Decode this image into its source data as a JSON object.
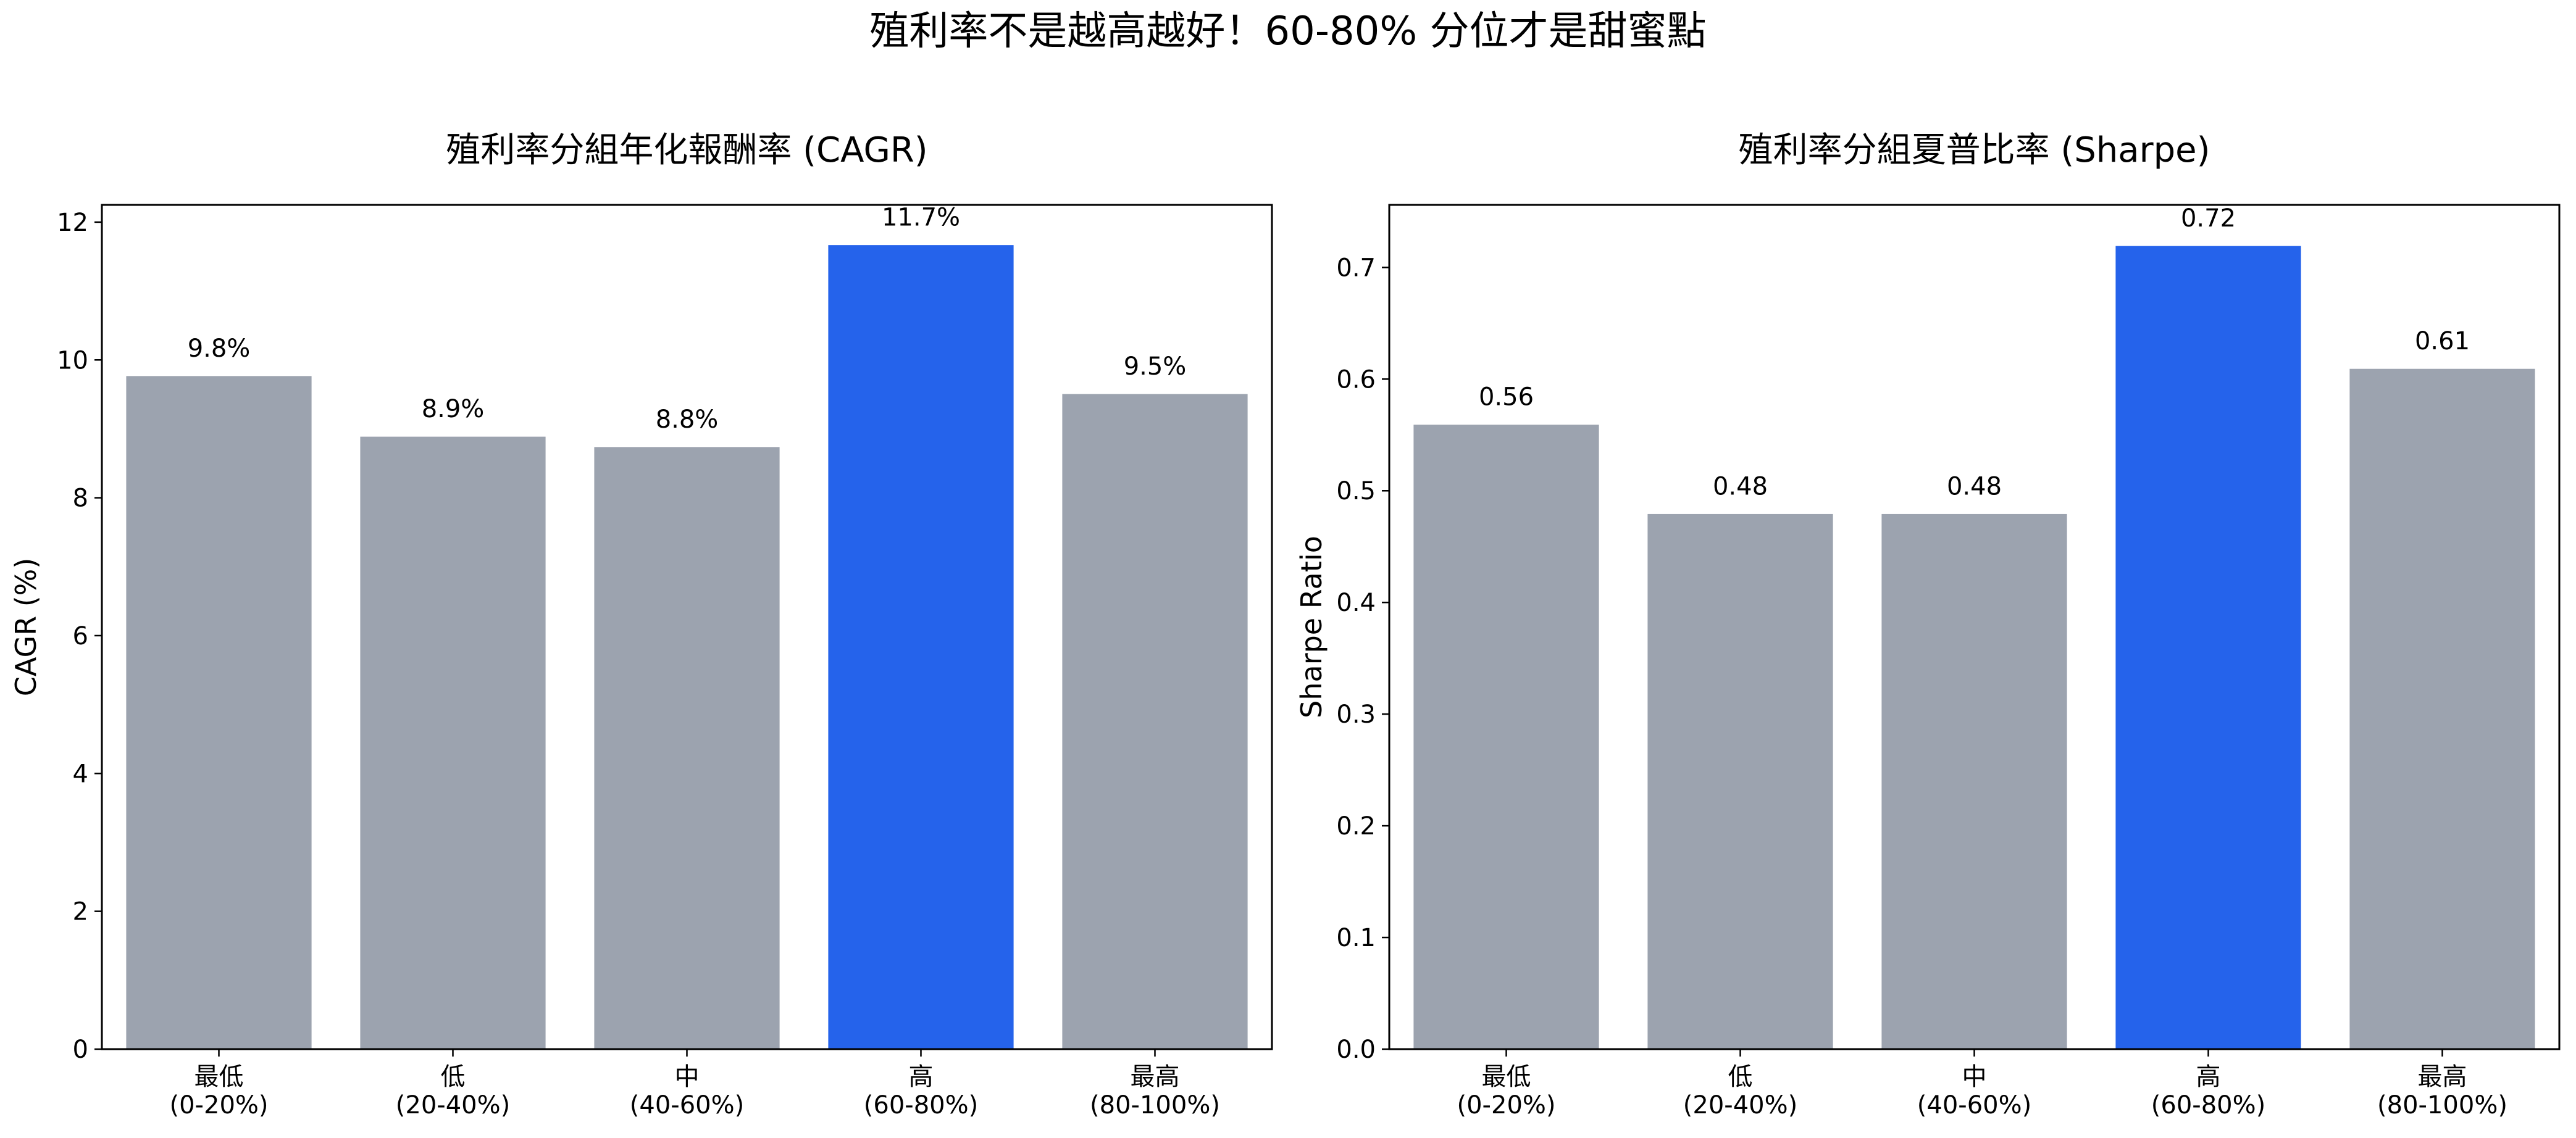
{
  "figure_title": "殖利率不是越高越好！60-80% 分位才是甜蜜點",
  "colors": {
    "normal": "#9CA3AF",
    "highlight": "#2563EB"
  },
  "chart_data": [
    {
      "type": "bar",
      "title": "殖利率分組年化報酬率 (CAGR)",
      "xlabel": "",
      "ylabel": "CAGR (%)",
      "categories": [
        "最低\n(0-20%)",
        "低\n(20-40%)",
        "中\n(40-60%)",
        "高\n(60-80%)",
        "最高\n(80-100%)"
      ],
      "values": [
        9.78,
        8.9,
        8.75,
        11.68,
        9.52
      ],
      "data_labels": [
        "9.8%",
        "8.9%",
        "8.8%",
        "11.7%",
        "9.5%"
      ],
      "highlight_index": 3,
      "ylim": [
        0,
        12.25
      ],
      "yticks": [
        0,
        2,
        4,
        6,
        8,
        10,
        12
      ],
      "ytick_labels": [
        "0",
        "2",
        "4",
        "6",
        "8",
        "10",
        "12"
      ],
      "grid": false
    },
    {
      "type": "bar",
      "title": "殖利率分組夏普比率 (Sharpe)",
      "xlabel": "",
      "ylabel": "Sharpe Ratio",
      "categories": [
        "最低\n(0-20%)",
        "低\n(20-40%)",
        "中\n(40-60%)",
        "高\n(60-80%)",
        "最高\n(80-100%)"
      ],
      "values": [
        0.56,
        0.48,
        0.48,
        0.72,
        0.61
      ],
      "data_labels": [
        "0.56",
        "0.48",
        "0.48",
        "0.72",
        "0.61"
      ],
      "highlight_index": 3,
      "ylim": [
        0,
        0.756
      ],
      "yticks": [
        0.0,
        0.1,
        0.2,
        0.3,
        0.4,
        0.5,
        0.6,
        0.7
      ],
      "ytick_labels": [
        "0.0",
        "0.1",
        "0.2",
        "0.3",
        "0.4",
        "0.5",
        "0.6",
        "0.7"
      ],
      "grid": false
    }
  ]
}
